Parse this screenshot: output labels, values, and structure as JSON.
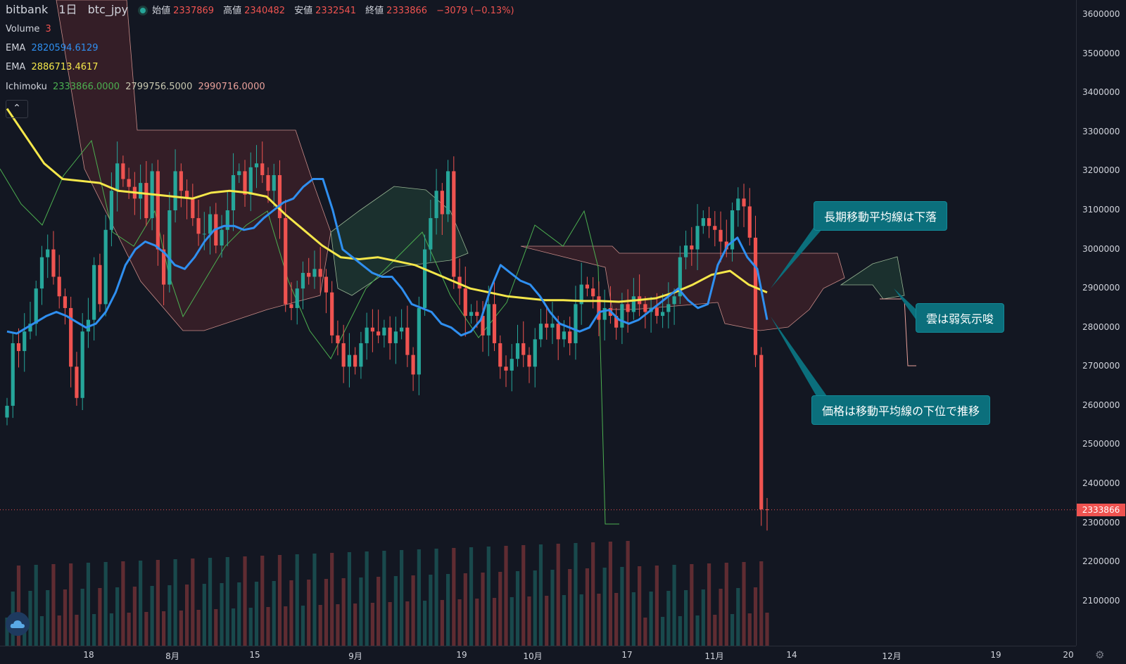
{
  "header": {
    "exchange": "bitbank",
    "interval": "1日",
    "symbol": "btc_jpy",
    "open_label": "始値",
    "open_value": "2337869",
    "high_label": "高値",
    "high_value": "2340482",
    "low_label": "安値",
    "low_value": "2332541",
    "close_label": "終値",
    "close_value": "2333866",
    "change": "−3079 (−0.13%)"
  },
  "indicators": {
    "volume_label": "Volume",
    "volume_value": "3",
    "ema1_label": "EMA",
    "ema1_value": "2820594.6129",
    "ema2_label": "EMA",
    "ema2_value": "2886713.4617",
    "ichimoku_label": "Ichimoku",
    "ichimoku_v1": "2333866.0000",
    "ichimoku_v2": "2799756.5000",
    "ichimoku_v3": "2990716.0000"
  },
  "colors": {
    "background": "#131722",
    "up": "#26a69a",
    "down": "#ef5350",
    "ema_fast": "#2f8ff0",
    "ema_slow": "#f5e74a",
    "callout": "#0b6f7c",
    "cloud_bear": "#3a2028",
    "cloud_bull": "#1c3330"
  },
  "icons": {
    "collapse": "chevron-up-icon",
    "logo": "tradingview-cloud-icon",
    "settings": "gear-icon"
  },
  "price_axis": {
    "ticks": [
      "3600000",
      "3500000",
      "3400000",
      "3300000",
      "3200000",
      "3100000",
      "3000000",
      "2900000",
      "2800000",
      "2700000",
      "2600000",
      "2500000",
      "2400000",
      "2300000",
      "2200000",
      "2100000"
    ],
    "current_price": "2333866"
  },
  "time_axis": {
    "ticks": [
      "18",
      "8月",
      "15",
      "9月",
      "19",
      "10月",
      "17",
      "11月",
      "14",
      "12月",
      "19",
      "20"
    ]
  },
  "callouts": {
    "long_ma": "長期移動平均線は下落",
    "cloud": "雲は弱気示唆",
    "price": "価格は移動平均線の下位で推移"
  },
  "chart_data": {
    "type": "candlestick",
    "ylim": [
      2060000,
      3620000
    ],
    "closes": [
      2600000,
      2760000,
      2740000,
      2790000,
      2810000,
      2900000,
      2980000,
      3000000,
      2930000,
      2880000,
      2850000,
      2700000,
      2620000,
      2790000,
      2820000,
      2960000,
      2860000,
      3050000,
      3150000,
      3220000,
      3180000,
      3160000,
      3130000,
      3170000,
      3080000,
      3200000,
      3000000,
      2910000,
      3100000,
      3200000,
      3150000,
      3130000,
      3080000,
      3040000,
      3040000,
      3090000,
      3010000,
      3050000,
      3100000,
      3190000,
      3200000,
      3140000,
      3210000,
      3220000,
      3190000,
      3150000,
      3190000,
      3080000,
      2860000,
      2850000,
      2900000,
      2940000,
      2930000,
      2950000,
      2930000,
      2890000,
      2780000,
      2760000,
      2700000,
      2730000,
      2700000,
      2760000,
      2800000,
      2790000,
      2780000,
      2800000,
      2760000,
      2790000,
      2800000,
      2730000,
      2680000,
      2850000,
      3000000,
      3080000,
      3150000,
      3090000,
      3200000,
      2930000,
      2900000,
      2830000,
      2840000,
      2830000,
      2780000,
      2860000,
      2760000,
      2700000,
      2690000,
      2720000,
      2760000,
      2730000,
      2700000,
      2770000,
      2810000,
      2800000,
      2810000,
      2770000,
      2790000,
      2760000,
      2860000,
      2910000,
      2900000,
      2880000,
      2820000,
      2850000,
      2830000,
      2800000,
      2860000,
      2840000,
      2880000,
      2860000,
      2840000,
      2850000,
      2830000,
      2840000,
      2860000,
      2880000,
      2980000,
      3010000,
      3000000,
      3060000,
      3080000,
      3060000,
      3050000,
      3020000,
      3000000,
      3100000,
      3130000,
      3110000,
      3030000,
      2730000,
      2335000,
      2333866
    ],
    "ema_fast": [
      2790000,
      2785000,
      2800000,
      2815000,
      2830000,
      2840000,
      2830000,
      2815000,
      2800000,
      2810000,
      2840000,
      2890000,
      2960000,
      3000000,
      3020000,
      3010000,
      2990000,
      2960000,
      2950000,
      2980000,
      3020000,
      3050000,
      3060000,
      3060000,
      3050000,
      3055000,
      3080000,
      3100000,
      3120000,
      3130000,
      3160000,
      3180000,
      3180000,
      3100000,
      3000000,
      2980000,
      2960000,
      2940000,
      2930000,
      2930000,
      2900000,
      2860000,
      2850000,
      2840000,
      2810000,
      2800000,
      2780000,
      2790000,
      2820000,
      2900000,
      2960000,
      2940000,
      2920000,
      2910000,
      2880000,
      2840000,
      2810000,
      2800000,
      2790000,
      2800000,
      2840000,
      2845000,
      2820000,
      2810000,
      2820000,
      2840000,
      2860000,
      2880000,
      2900000,
      2870000,
      2850000,
      2860000,
      2960000,
      3010000,
      3030000,
      2980000,
      2950000,
      2820000
    ],
    "ema_slow": [
      3360000,
      3290000,
      3220000,
      3180000,
      3175000,
      3170000,
      3150000,
      3145000,
      3140000,
      3135000,
      3130000,
      3145000,
      3150000,
      3145000,
      3135000,
      3090000,
      3050000,
      3010000,
      2980000,
      2975000,
      2980000,
      2970000,
      2960000,
      2940000,
      2920000,
      2900000,
      2890000,
      2880000,
      2875000,
      2870000,
      2870000,
      2868000,
      2868000,
      2866000,
      2870000,
      2875000,
      2890000,
      2910000,
      2935000,
      2945000,
      2910000,
      2890000
    ]
  }
}
